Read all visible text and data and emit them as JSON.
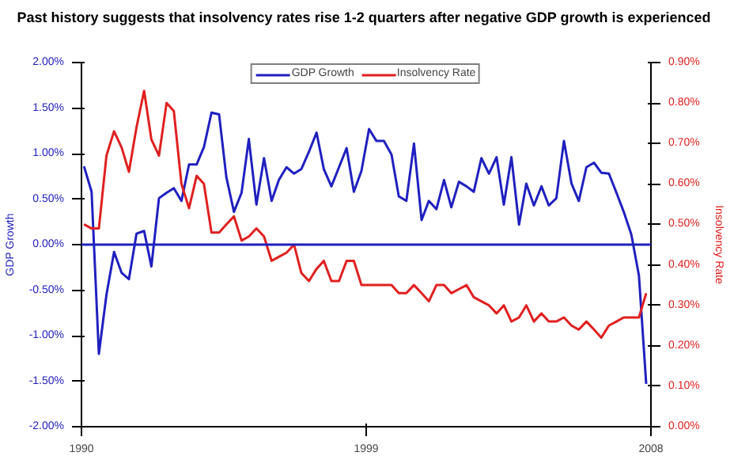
{
  "chart_data": {
    "type": "line",
    "title": "Past history suggests that insolvency rates rise 1-2 quarters after negative GDP growth is experienced",
    "ylabel": "GDP Growth",
    "y2label": "Insolvency Rate",
    "x": [
      1990.08,
      1990.32,
      1990.55,
      1990.79,
      1991.03,
      1991.27,
      1991.5,
      1991.74,
      1991.98,
      1992.21,
      1992.45,
      1992.69,
      1992.92,
      1993.16,
      1993.4,
      1993.64,
      1993.87,
      1994.11,
      1994.35,
      1994.58,
      1994.82,
      1995.06,
      1995.29,
      1995.53,
      1995.77,
      1996.01,
      1996.24,
      1996.48,
      1996.72,
      1996.95,
      1997.19,
      1997.43,
      1997.66,
      1997.9,
      1998.14,
      1998.38,
      1998.61,
      1998.85,
      1999.09,
      1999.32,
      1999.56,
      1999.8,
      2000.03,
      2000.27,
      2000.51,
      2000.75,
      2000.98,
      2001.22,
      2001.46,
      2001.69,
      2001.93,
      2002.17,
      2002.4,
      2002.64,
      2002.88,
      2003.12,
      2003.35,
      2003.59,
      2003.83,
      2004.06,
      2004.3,
      2004.54,
      2004.77,
      2005.01,
      2005.25,
      2005.49,
      2005.72,
      2005.96,
      2006.2,
      2006.43,
      2006.67,
      2006.91,
      2007.14,
      2007.38,
      2007.62,
      2007.85
    ],
    "series": [
      {
        "name": "GDP Growth",
        "color": "#2020c0",
        "values": [
          0.86,
          0.58,
          -1.2,
          -0.55,
          -0.08,
          -0.31,
          -0.38,
          0.12,
          0.15,
          -0.24,
          0.51,
          0.57,
          0.62,
          0.48,
          0.88,
          0.88,
          1.07,
          1.45,
          1.43,
          0.74,
          0.36,
          0.57,
          1.16,
          0.44,
          0.95,
          0.48,
          0.71,
          0.85,
          0.78,
          0.83,
          1.02,
          1.23,
          0.83,
          0.64,
          0.85,
          1.06,
          0.58,
          0.81,
          1.27,
          1.14,
          1.14,
          0.99,
          0.53,
          0.48,
          1.11,
          0.27,
          0.48,
          0.39,
          0.71,
          0.41,
          0.69,
          0.64,
          0.58,
          0.95,
          0.78,
          0.96,
          0.44,
          0.96,
          0.22,
          0.67,
          0.43,
          0.64,
          0.43,
          0.51,
          1.14,
          0.67,
          0.48,
          0.85,
          0.9,
          0.79,
          0.78,
          0.57,
          0.36,
          0.11,
          -0.34,
          -1.53
        ]
      },
      {
        "name": "Insolvency Rate",
        "color": "#e02020",
        "axis": "y2",
        "values": [
          0.5,
          0.49,
          0.49,
          0.67,
          0.73,
          0.69,
          0.63,
          0.74,
          0.83,
          0.71,
          0.67,
          0.8,
          0.78,
          0.6,
          0.54,
          0.62,
          0.6,
          0.48,
          0.48,
          0.5,
          0.52,
          0.46,
          0.47,
          0.49,
          0.47,
          0.41,
          0.42,
          0.43,
          0.45,
          0.38,
          0.36,
          0.39,
          0.41,
          0.36,
          0.36,
          0.41,
          0.41,
          0.35,
          0.35,
          0.35,
          0.35,
          0.35,
          0.33,
          0.33,
          0.35,
          0.33,
          0.31,
          0.35,
          0.35,
          0.33,
          0.34,
          0.35,
          0.32,
          0.31,
          0.3,
          0.28,
          0.3,
          0.26,
          0.27,
          0.3,
          0.26,
          0.28,
          0.26,
          0.26,
          0.27,
          0.25,
          0.24,
          0.26,
          0.24,
          0.22,
          0.25,
          0.26,
          0.27,
          0.27,
          0.27,
          0.33
        ]
      }
    ],
    "xlim": [
      1990,
      2008
    ],
    "xticks": [
      1990,
      1999,
      2008
    ],
    "ylim": [
      -2,
      2
    ],
    "yticks": [
      {
        "value": -2,
        "label": "-2.00%"
      },
      {
        "value": -1.5,
        "label": "-1.50%"
      },
      {
        "value": -1,
        "label": "-1.00%"
      },
      {
        "value": -0.5,
        "label": "-0.50%"
      },
      {
        "value": 0,
        "label": "0.00%"
      },
      {
        "value": 0.5,
        "label": "0.50%"
      },
      {
        "value": 1,
        "label": "1.00%"
      },
      {
        "value": 1.5,
        "label": "1.50%"
      },
      {
        "value": 2,
        "label": "2.00%"
      }
    ],
    "y2lim": [
      0,
      0.9
    ],
    "y2ticks": [
      {
        "value": 0,
        "label": "0.00%"
      },
      {
        "value": 0.1,
        "label": "0.10%"
      },
      {
        "value": 0.2,
        "label": "0.20%"
      },
      {
        "value": 0.3,
        "label": "0.30%"
      },
      {
        "value": 0.4,
        "label": "0.40%"
      },
      {
        "value": 0.5,
        "label": "0.50%"
      },
      {
        "value": 0.6,
        "label": "0.60%"
      },
      {
        "value": 0.7,
        "label": "0.70%"
      },
      {
        "value": 0.8,
        "label": "0.80%"
      },
      {
        "value": 0.9,
        "label": "0.90%"
      }
    ],
    "ref_lines": [
      {
        "axis": "y",
        "value": 0,
        "color": "#2020c0"
      }
    ],
    "grid": false,
    "legend": "top",
    "marker": "none",
    "line_style": "solid"
  }
}
